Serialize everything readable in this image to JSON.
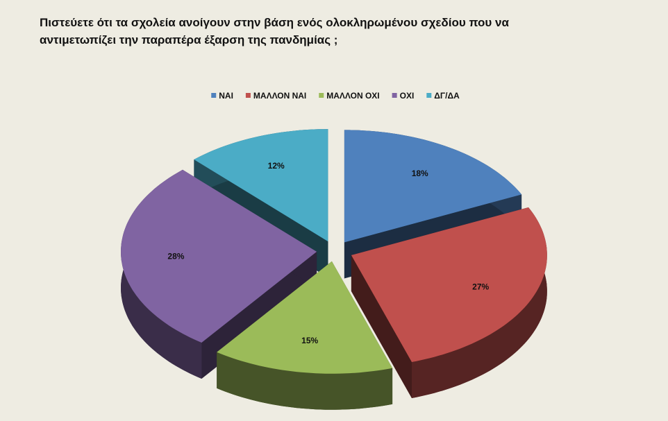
{
  "chart_data": {
    "type": "pie3d",
    "title": "Πιστεύετε ότι τα σχολεία ανοίγουν στην βάση ενός ολοκληρωμένου σχεδίου που να αντιμετωπίζει την παραπέρα έξαρση της πανδημίας ;",
    "categories": [
      "ΝΑΙ",
      "ΜΑΛΛΟΝ ΝΑΙ",
      "ΜΑΛΛΟΝ ΟΧΙ",
      "ΟΧΙ",
      "ΔΓ/ΔΑ"
    ],
    "values": [
      18,
      27,
      15,
      28,
      12
    ],
    "value_labels": [
      "18%",
      "27%",
      "15%",
      "28%",
      "12%"
    ],
    "colors": [
      "#4f81bd",
      "#c0504d",
      "#9bbb59",
      "#8064a2",
      "#4bacc6"
    ],
    "legend": "top"
  }
}
